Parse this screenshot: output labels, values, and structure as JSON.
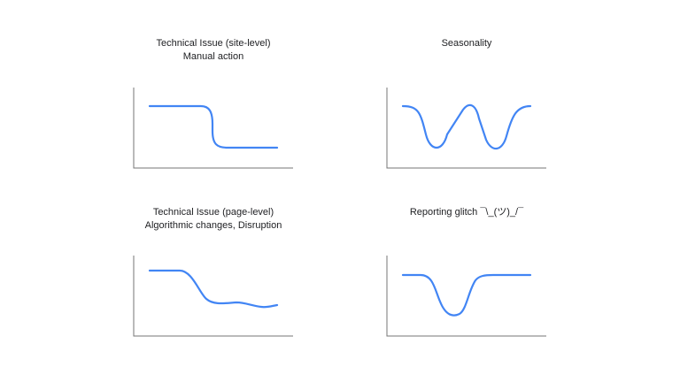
{
  "panels": [
    {
      "id": "site-level",
      "title": "Technical Issue (site-level)",
      "subtitle": "Manual action",
      "pattern": "step-down",
      "line_color": "#4285f4"
    },
    {
      "id": "seasonality",
      "title": "Seasonality",
      "subtitle": "",
      "pattern": "double-dip",
      "line_color": "#4285f4"
    },
    {
      "id": "page-level",
      "title": "Technical Issue (page-level)",
      "subtitle": "Algorithmic changes, Disruption",
      "pattern": "gradual-decline",
      "line_color": "#4285f4"
    },
    {
      "id": "reporting-glitch",
      "title": "Reporting glitch ¯\\_(ツ)_/¯",
      "subtitle": "",
      "pattern": "temporary-dip",
      "line_color": "#4285f4"
    }
  ],
  "colors": {
    "axis": "#757575",
    "line": "#4285f4",
    "text": "#202124",
    "background": "#ffffff"
  }
}
